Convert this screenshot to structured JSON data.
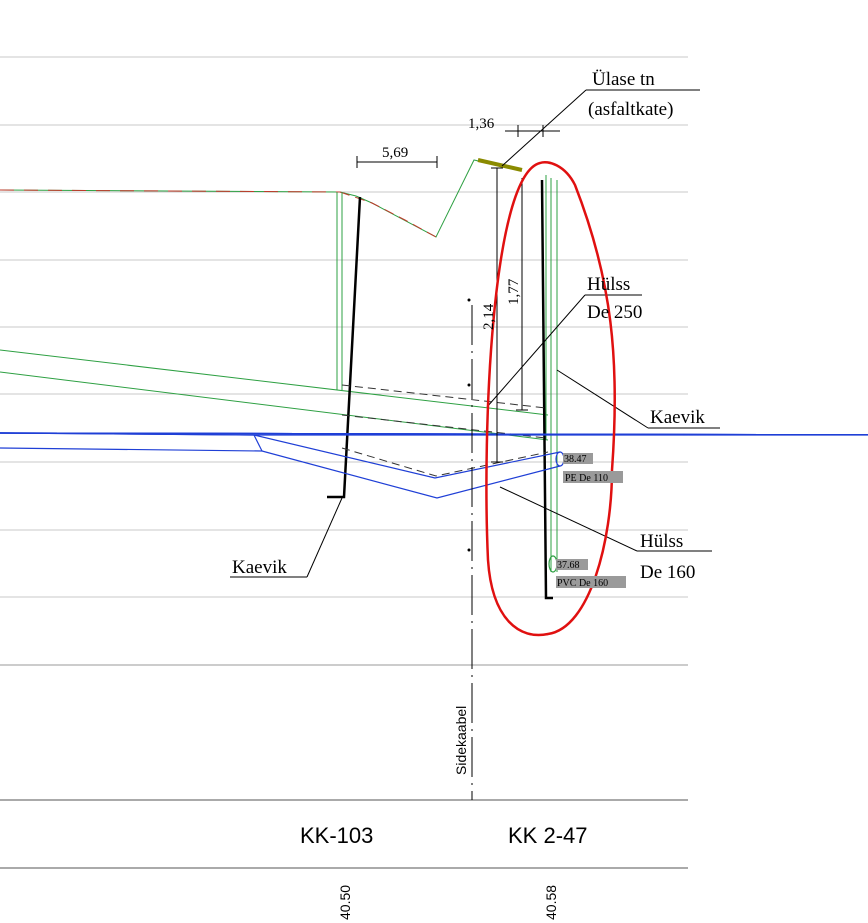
{
  "annotations": {
    "road_surface_line1": "Ülase tn",
    "road_surface_line2": "(asfaltkate)",
    "sleeve_250_line1": "Hülss",
    "sleeve_250_line2": "De 250",
    "trench_right": "Kaevik",
    "trench_left": "Kaevik",
    "sleeve_160_line1": "Hülss",
    "sleeve_160_line2": "De 160"
  },
  "dimensions": {
    "width_a": "5,69",
    "width_b": "1,36",
    "depth_a": "2,14",
    "depth_b": "1,77"
  },
  "pipe_labels": {
    "pe_level": "38.47",
    "pe_type": "PE De 110",
    "pvc_level": "37.68",
    "pvc_type": "PVC De 160"
  },
  "side_label": "Sidekaabel",
  "stations": {
    "left": "KK-103",
    "right": "KK 2-47"
  },
  "elevations": {
    "left": "40.50",
    "right": "40.58"
  },
  "colors": {
    "grid": "#c8c8c8",
    "green": "#2ea043",
    "blue": "#1f3fd6",
    "red_markup": "#e01010",
    "ground_red": "#c0392b",
    "asphalt": "#8a8a00",
    "label_bg": "#9a9a9a"
  }
}
